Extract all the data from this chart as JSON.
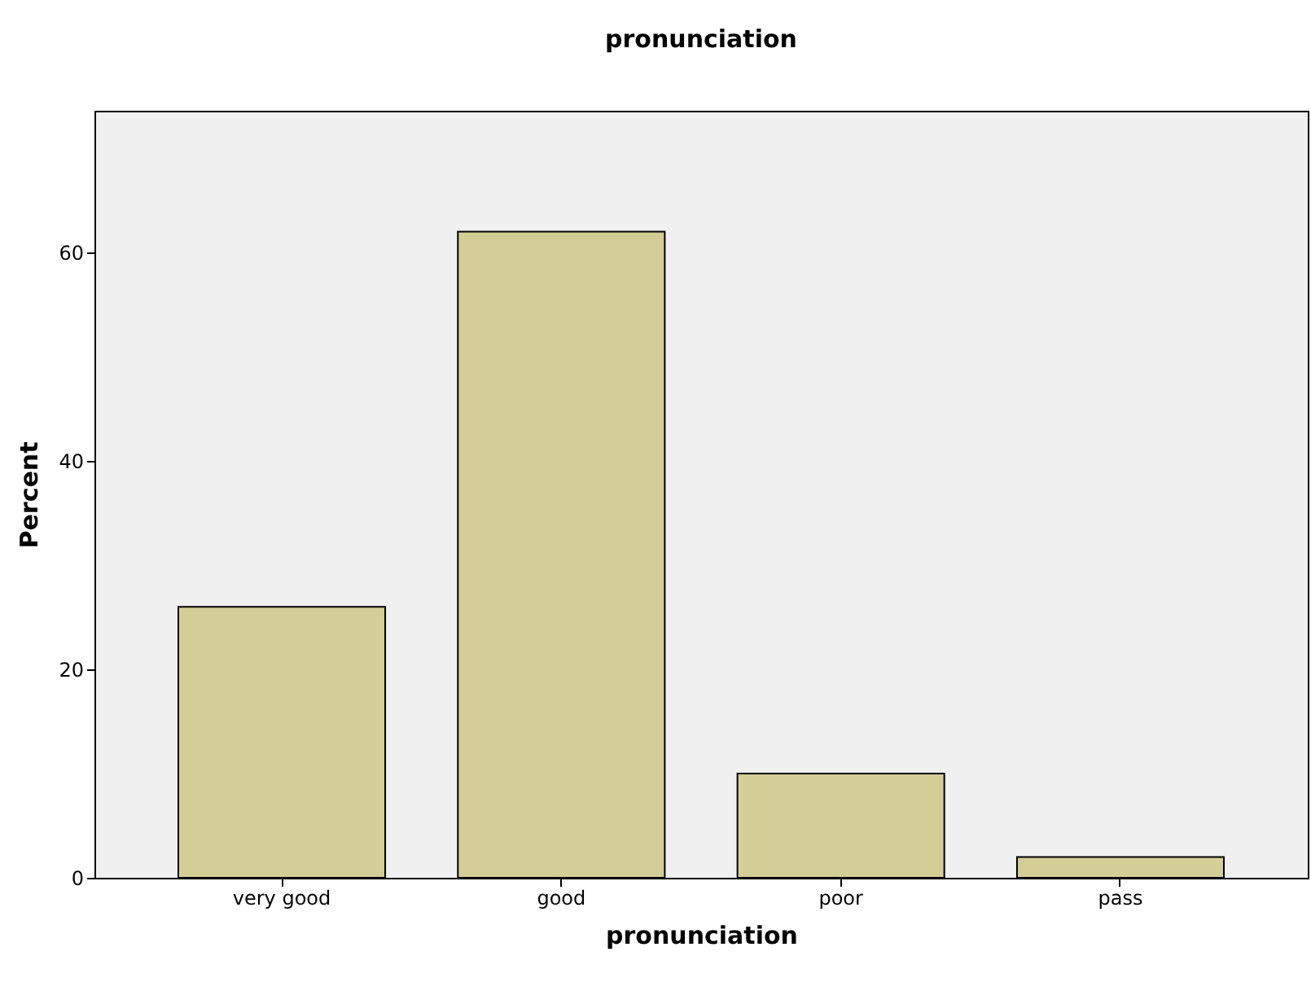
{
  "chart_data": {
    "type": "bar",
    "title": "pronunciation",
    "xlabel": "pronunciation",
    "ylabel": "Percent",
    "categories": [
      "very good",
      "good",
      "poor",
      "pass"
    ],
    "values": [
      26,
      62,
      10,
      2
    ],
    "color": "#d3ce96",
    "ylim": [
      0,
      73.6
    ],
    "yticks": [
      0,
      20,
      40,
      60
    ],
    "grid": false
  }
}
